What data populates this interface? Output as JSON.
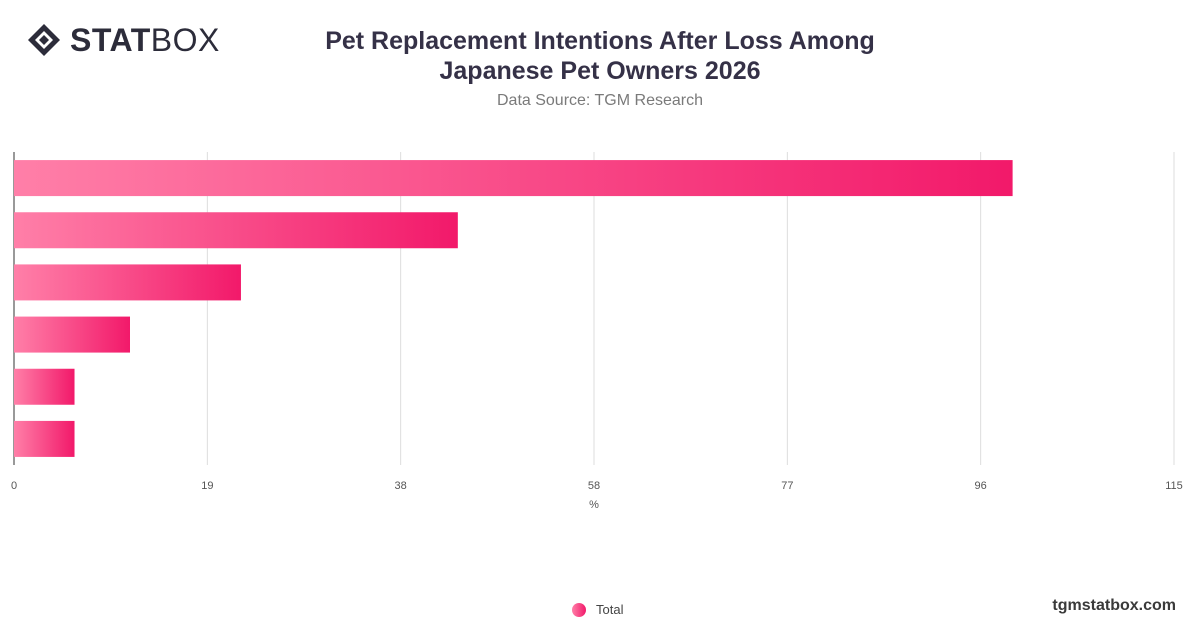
{
  "brand": {
    "stat": "STAT",
    "box": "BOX",
    "site": "tgmstatbox.com"
  },
  "header": {
    "title_line1": "Pet Replacement Intentions After Loss Among",
    "title_line2": "Japanese Pet Owners 2026",
    "subtitle": "Data Source: TGM Research"
  },
  "colors": {
    "bar_start": "#ff7fa8",
    "bar_end": "#f2196a",
    "grid": "#dddddd",
    "axis": "#333333"
  },
  "chart_data": {
    "type": "bar",
    "orientation": "horizontal",
    "categories": [
      "",
      "",
      "",
      "",
      "",
      ""
    ],
    "series": [
      {
        "name": "Total",
        "values": [
          99,
          44,
          22.5,
          11.5,
          6,
          6
        ]
      }
    ],
    "xlabel": "%",
    "xlim": [
      0,
      115
    ],
    "xticks": [
      "0",
      "19",
      "38",
      "58",
      "77",
      "96",
      "115"
    ],
    "grid": true,
    "legend": "bottom-center"
  }
}
